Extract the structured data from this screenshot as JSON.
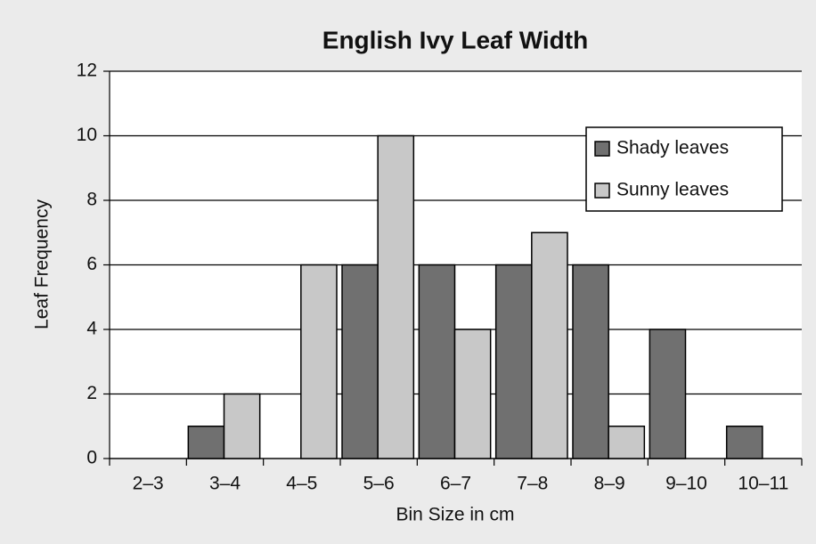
{
  "chart_data": {
    "type": "bar",
    "title": "English Ivy Leaf Width",
    "x_label": "Bin Size in cm",
    "y_label": "Leaf Frequency",
    "categories": [
      "2–3",
      "3–4",
      "4–5",
      "5–6",
      "6–7",
      "7–8",
      "8–9",
      "9–10",
      "10–11"
    ],
    "series": [
      {
        "name": "Shady leaves",
        "color": "#707070",
        "values": [
          0,
          1,
          0,
          6,
          6,
          6,
          6,
          4,
          1
        ]
      },
      {
        "name": "Sunny leaves",
        "color": "#c8c8c8",
        "values": [
          0,
          2,
          6,
          10,
          4,
          7,
          1,
          0,
          0
        ]
      }
    ],
    "ylim": [
      0,
      12
    ],
    "yticks": [
      0,
      2,
      4,
      6,
      8,
      10,
      12
    ],
    "grid": true,
    "legend": "upper right"
  }
}
